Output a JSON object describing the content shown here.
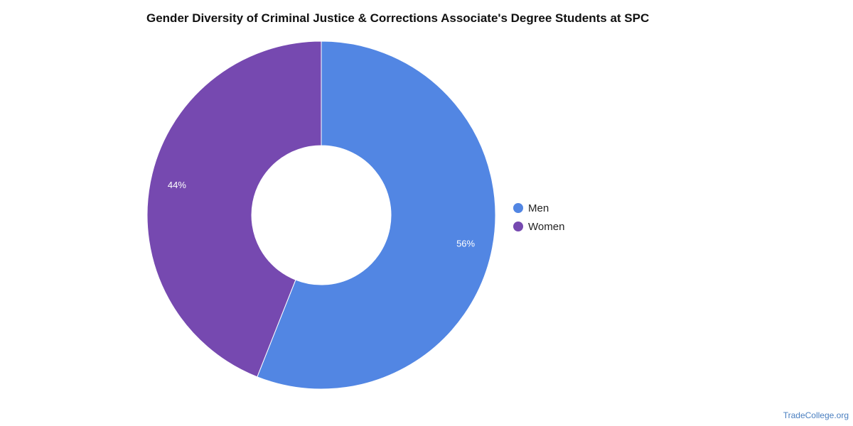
{
  "chart_data": {
    "type": "pie",
    "title": "Gender Diversity of Criminal Justice & Corrections Associate's Degree Students at SPC",
    "categories": [
      "Men",
      "Women"
    ],
    "values": [
      56,
      44
    ],
    "labels": [
      "56%",
      "44%"
    ],
    "colors": [
      "#5286e3",
      "#7649b0"
    ],
    "donut": true,
    "legend_position": "right"
  },
  "legend": {
    "items": [
      {
        "label": "Men",
        "color": "#5286e3"
      },
      {
        "label": "Women",
        "color": "#7649b0"
      }
    ]
  },
  "footer": {
    "source": "TradeCollege.org"
  }
}
